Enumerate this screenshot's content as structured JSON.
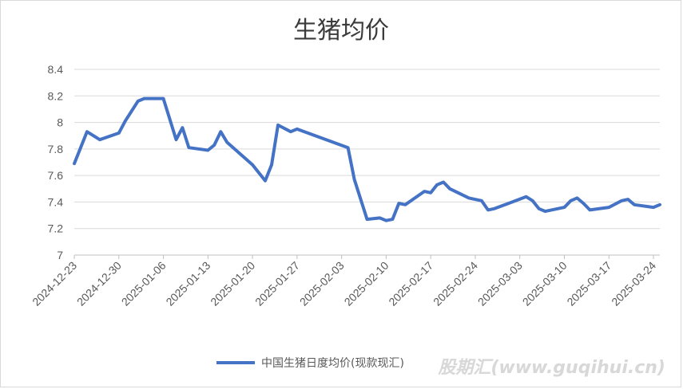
{
  "chart_data": {
    "type": "line",
    "title": "生猪均价",
    "xlabel": "",
    "ylabel": "",
    "ylim": [
      7,
      8.4
    ],
    "yticks": [
      "7",
      "7.2",
      "7.4",
      "7.6",
      "7.8",
      "8",
      "8.2",
      "8.4"
    ],
    "xlim": [
      "2024-12-23",
      "2025-03-25"
    ],
    "xtick_labels": [
      "2024-12-23",
      "2024-12-30",
      "2025-01-06",
      "2025-01-13",
      "2025-01-20",
      "2025-01-27",
      "2025-02-03",
      "2025-02-10",
      "2025-02-17",
      "2025-02-24",
      "2025-03-03",
      "2025-03-10",
      "2025-03-17",
      "2025-03-24"
    ],
    "grid": true,
    "legend_position": "bottom",
    "series": [
      {
        "name": "中国生猪日度均价(现款现汇)",
        "color": "#4472C4",
        "points": [
          [
            "2024-12-23",
            7.69
          ],
          [
            "2024-12-25",
            7.93
          ],
          [
            "2024-12-27",
            7.87
          ],
          [
            "2024-12-30",
            7.92
          ],
          [
            "2024-12-31",
            8.01
          ],
          [
            "2025-01-02",
            8.16
          ],
          [
            "2025-01-03",
            8.18
          ],
          [
            "2025-01-06",
            8.18
          ],
          [
            "2025-01-08",
            7.87
          ],
          [
            "2025-01-09",
            7.96
          ],
          [
            "2025-01-10",
            7.81
          ],
          [
            "2025-01-13",
            7.79
          ],
          [
            "2025-01-14",
            7.83
          ],
          [
            "2025-01-15",
            7.93
          ],
          [
            "2025-01-16",
            7.85
          ],
          [
            "2025-01-20",
            7.68
          ],
          [
            "2025-01-22",
            7.56
          ],
          [
            "2025-01-23",
            7.68
          ],
          [
            "2025-01-24",
            7.98
          ],
          [
            "2025-01-26",
            7.93
          ],
          [
            "2025-01-27",
            7.95
          ],
          [
            "2025-02-04",
            7.81
          ],
          [
            "2025-02-05",
            7.57
          ],
          [
            "2025-02-07",
            7.27
          ],
          [
            "2025-02-09",
            7.28
          ],
          [
            "2025-02-10",
            7.26
          ],
          [
            "2025-02-11",
            7.27
          ],
          [
            "2025-02-12",
            7.39
          ],
          [
            "2025-02-13",
            7.38
          ],
          [
            "2025-02-16",
            7.48
          ],
          [
            "2025-02-17",
            7.47
          ],
          [
            "2025-02-18",
            7.53
          ],
          [
            "2025-02-19",
            7.55
          ],
          [
            "2025-02-20",
            7.5
          ],
          [
            "2025-02-23",
            7.43
          ],
          [
            "2025-02-25",
            7.41
          ],
          [
            "2025-02-26",
            7.34
          ],
          [
            "2025-02-27",
            7.35
          ],
          [
            "2025-03-04",
            7.44
          ],
          [
            "2025-03-05",
            7.41
          ],
          [
            "2025-03-06",
            7.35
          ],
          [
            "2025-03-07",
            7.33
          ],
          [
            "2025-03-10",
            7.36
          ],
          [
            "2025-03-11",
            7.41
          ],
          [
            "2025-03-12",
            7.43
          ],
          [
            "2025-03-13",
            7.39
          ],
          [
            "2025-03-14",
            7.34
          ],
          [
            "2025-03-17",
            7.36
          ],
          [
            "2025-03-19",
            7.41
          ],
          [
            "2025-03-20",
            7.42
          ],
          [
            "2025-03-21",
            7.38
          ],
          [
            "2025-03-24",
            7.36
          ],
          [
            "2025-03-25",
            7.38
          ]
        ]
      }
    ]
  },
  "watermark": "股期汇(www.guqihui.cn)"
}
